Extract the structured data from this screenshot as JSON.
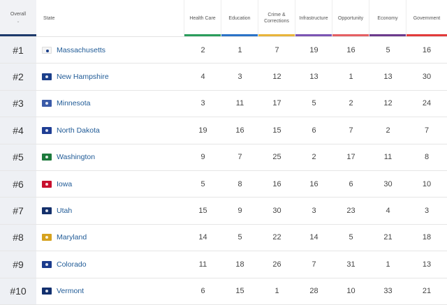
{
  "header": {
    "overall": "Overall",
    "sort_indicator": "⌄",
    "state": "State",
    "categories": [
      {
        "label": "Health Care",
        "color": "#2a9d5c"
      },
      {
        "label": "Education",
        "color": "#2a73c7"
      },
      {
        "label": "Crime & Corrections",
        "color": "#e8b43a"
      },
      {
        "label": "Infrastructure",
        "color": "#7b55b3"
      },
      {
        "label": "Opportunity",
        "color": "#e55f63"
      },
      {
        "label": "Economy",
        "color": "#6c3a8c"
      },
      {
        "label": "Government",
        "color": "#e23a3a"
      }
    ]
  },
  "rows": [
    {
      "rank": "#1",
      "state": "Massachusetts",
      "flag_color": "#f5f5f5",
      "values": [
        "2",
        "1",
        "7",
        "19",
        "16",
        "5",
        "16"
      ]
    },
    {
      "rank": "#2",
      "state": "New Hampshire",
      "flag_color": "#1b3f8a",
      "values": [
        "4",
        "3",
        "12",
        "13",
        "1",
        "13",
        "30"
      ]
    },
    {
      "rank": "#3",
      "state": "Minnesota",
      "flag_color": "#3a5aa8",
      "values": [
        "3",
        "11",
        "17",
        "5",
        "2",
        "12",
        "24"
      ]
    },
    {
      "rank": "#4",
      "state": "North Dakota",
      "flag_color": "#1f3e94",
      "values": [
        "19",
        "16",
        "15",
        "6",
        "7",
        "2",
        "7"
      ]
    },
    {
      "rank": "#5",
      "state": "Washington",
      "flag_color": "#1d7a3c",
      "values": [
        "9",
        "7",
        "25",
        "2",
        "17",
        "11",
        "8"
      ]
    },
    {
      "rank": "#6",
      "state": "Iowa",
      "flag_color": "#c8102e",
      "values": [
        "5",
        "8",
        "16",
        "16",
        "6",
        "30",
        "10"
      ]
    },
    {
      "rank": "#7",
      "state": "Utah",
      "flag_color": "#14306b",
      "values": [
        "15",
        "9",
        "30",
        "3",
        "23",
        "4",
        "3"
      ]
    },
    {
      "rank": "#8",
      "state": "Maryland",
      "flag_color": "#d6a21e",
      "values": [
        "14",
        "5",
        "22",
        "14",
        "5",
        "21",
        "18"
      ]
    },
    {
      "rank": "#9",
      "state": "Colorado",
      "flag_color": "#1a3b8c",
      "values": [
        "11",
        "18",
        "26",
        "7",
        "31",
        "1",
        "13"
      ]
    },
    {
      "rank": "#10",
      "state": "Vermont",
      "flag_color": "#12306e",
      "values": [
        "6",
        "15",
        "1",
        "28",
        "10",
        "33",
        "21"
      ]
    }
  ]
}
